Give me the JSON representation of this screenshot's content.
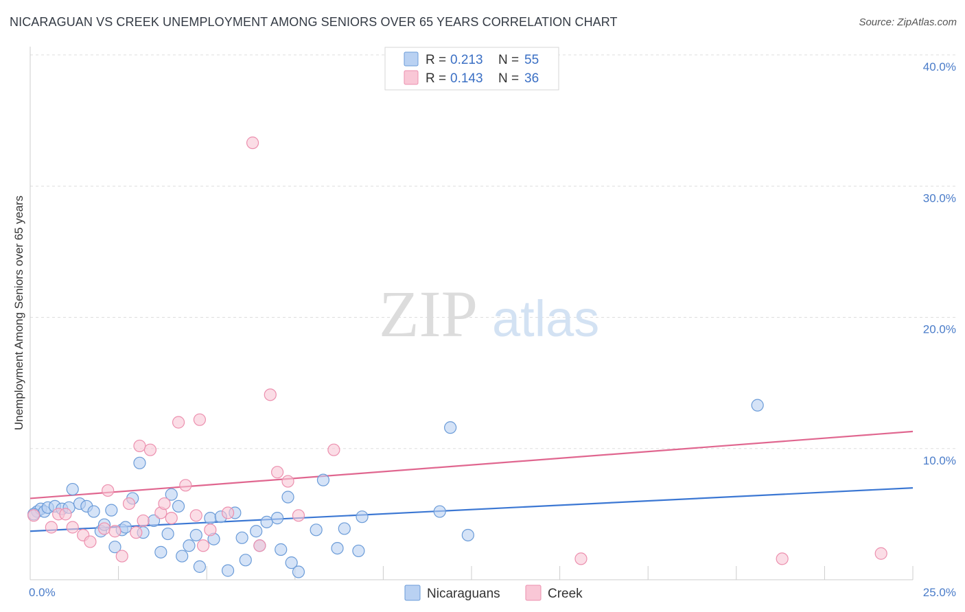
{
  "title": "NICARAGUAN VS CREEK UNEMPLOYMENT AMONG SENIORS OVER 65 YEARS CORRELATION CHART",
  "source": "Source: ZipAtlas.com",
  "watermark": {
    "zip": "ZIP",
    "atlas": "atlas"
  },
  "colors": {
    "nicaraguans_fill": "#b9d1f2",
    "nicaraguans_stroke": "#6a9bd8",
    "nicaraguans_line": "#3b77d3",
    "creek_fill": "#f9c7d6",
    "creek_stroke": "#ec8fae",
    "creek_line": "#e0668f",
    "grid": "#dddddd",
    "axis_label": "#4a7cc9"
  },
  "legend": {
    "rows": [
      {
        "r_label": "R =",
        "r_value": "0.213",
        "n_label": "N =",
        "n_value": "55"
      },
      {
        "r_label": "R =",
        "r_value": "0.143",
        "n_label": "N =",
        "n_value": "36"
      }
    ]
  },
  "chart_data": {
    "type": "scatter",
    "title": "NICARAGUAN VS CREEK UNEMPLOYMENT AMONG SENIORS OVER 65 YEARS CORRELATION CHART",
    "xlabel": "",
    "ylabel": "Unemployment Among Seniors over 65 years",
    "xlim": [
      0,
      25
    ],
    "ylim": [
      0,
      40
    ],
    "x_tick_labels": [
      "0.0%",
      "25.0%"
    ],
    "y_ticks": [
      10,
      20,
      30,
      40
    ],
    "y_tick_labels": [
      "10.0%",
      "20.0%",
      "30.0%",
      "40.0%"
    ],
    "grid": true,
    "series": [
      {
        "name": "Nicaraguans",
        "R": 0.213,
        "N": 55,
        "trend": {
          "x": [
            0,
            25
          ],
          "y": [
            3.7,
            7.0
          ]
        },
        "points": [
          [
            0.2,
            5.2
          ],
          [
            0.3,
            5.4
          ],
          [
            0.4,
            5.2
          ],
          [
            0.5,
            5.5
          ],
          [
            0.7,
            5.6
          ],
          [
            0.9,
            5.4
          ],
          [
            1.1,
            5.5
          ],
          [
            1.2,
            6.9
          ],
          [
            1.4,
            5.8
          ],
          [
            1.6,
            5.6
          ],
          [
            1.8,
            5.2
          ],
          [
            2.0,
            3.7
          ],
          [
            2.1,
            4.2
          ],
          [
            2.3,
            5.3
          ],
          [
            2.4,
            2.5
          ],
          [
            2.6,
            3.8
          ],
          [
            2.7,
            4.0
          ],
          [
            2.9,
            6.2
          ],
          [
            3.1,
            8.9
          ],
          [
            3.2,
            3.6
          ],
          [
            3.5,
            4.5
          ],
          [
            3.7,
            2.1
          ],
          [
            3.9,
            3.5
          ],
          [
            4.0,
            6.5
          ],
          [
            4.2,
            5.6
          ],
          [
            4.3,
            1.8
          ],
          [
            4.5,
            2.6
          ],
          [
            4.7,
            3.4
          ],
          [
            4.8,
            1.0
          ],
          [
            5.1,
            4.7
          ],
          [
            5.2,
            3.1
          ],
          [
            5.4,
            4.8
          ],
          [
            5.6,
            0.7
          ],
          [
            5.8,
            5.1
          ],
          [
            6.0,
            3.2
          ],
          [
            6.1,
            1.5
          ],
          [
            6.4,
            3.7
          ],
          [
            6.5,
            2.6
          ],
          [
            6.7,
            4.4
          ],
          [
            7.0,
            4.7
          ],
          [
            7.1,
            2.3
          ],
          [
            7.3,
            6.3
          ],
          [
            7.4,
            1.3
          ],
          [
            7.6,
            0.6
          ],
          [
            8.1,
            3.8
          ],
          [
            8.3,
            7.6
          ],
          [
            8.7,
            2.4
          ],
          [
            8.9,
            3.9
          ],
          [
            9.3,
            2.2
          ],
          [
            9.4,
            4.8
          ],
          [
            11.6,
            5.2
          ],
          [
            11.9,
            11.6
          ],
          [
            12.4,
            3.4
          ],
          [
            20.6,
            13.3
          ],
          [
            0.1,
            5.0
          ]
        ]
      },
      {
        "name": "Creek",
        "R": 0.143,
        "N": 36,
        "trend": {
          "x": [
            0,
            25
          ],
          "y": [
            6.2,
            11.3
          ]
        },
        "points": [
          [
            0.1,
            4.9
          ],
          [
            0.6,
            4.0
          ],
          [
            0.8,
            5.0
          ],
          [
            1.0,
            5.0
          ],
          [
            1.2,
            4.0
          ],
          [
            1.5,
            3.4
          ],
          [
            1.7,
            2.9
          ],
          [
            2.1,
            3.9
          ],
          [
            2.2,
            6.8
          ],
          [
            2.4,
            3.7
          ],
          [
            2.6,
            1.8
          ],
          [
            2.8,
            5.8
          ],
          [
            3.0,
            3.6
          ],
          [
            3.1,
            10.2
          ],
          [
            3.2,
            4.5
          ],
          [
            3.4,
            9.9
          ],
          [
            3.7,
            5.1
          ],
          [
            3.8,
            5.8
          ],
          [
            4.0,
            4.7
          ],
          [
            4.2,
            12.0
          ],
          [
            4.4,
            7.2
          ],
          [
            4.7,
            4.9
          ],
          [
            4.8,
            12.2
          ],
          [
            4.9,
            2.6
          ],
          [
            5.1,
            3.8
          ],
          [
            5.6,
            5.1
          ],
          [
            6.3,
            33.3
          ],
          [
            6.5,
            2.6
          ],
          [
            6.8,
            14.1
          ],
          [
            7.0,
            8.2
          ],
          [
            7.3,
            7.5
          ],
          [
            7.6,
            4.9
          ],
          [
            8.6,
            9.9
          ],
          [
            15.6,
            1.6
          ],
          [
            21.3,
            1.6
          ],
          [
            24.1,
            2.0
          ]
        ]
      }
    ]
  }
}
